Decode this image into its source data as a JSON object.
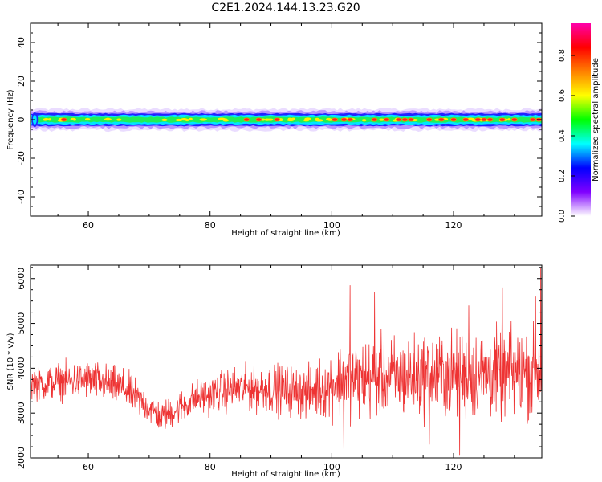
{
  "title": "C2E1.2024.144.13.23.G20",
  "chart_data": [
    {
      "type": "heatmap",
      "name": "spectrogram",
      "xlabel": "Height of straight line (km)",
      "ylabel": "Frequency (Hz)",
      "xlim": [
        50.5,
        134.5
      ],
      "ylim": [
        -50,
        50
      ],
      "xticks": [
        60,
        80,
        100,
        120
      ],
      "yticks": [
        40,
        20,
        0,
        -20,
        -40
      ],
      "ridge_frequency": 0,
      "band_halfwidth": 4,
      "colorbar": {
        "label": "Normalized spectral amplitude",
        "range": [
          0,
          1
        ],
        "ticks": [
          "0.0",
          "0.2",
          "0.4",
          "0.6",
          "0.8"
        ],
        "colors": [
          "#ffffff",
          "#8000ff",
          "#0000ff",
          "#00ffff",
          "#00ff00",
          "#ffff00",
          "#ff8000",
          "#ff0000",
          "#ff00aa"
        ]
      },
      "peak_heights": [
        56,
        86,
        88,
        91,
        100.5,
        102,
        103,
        107,
        109,
        111,
        112,
        113,
        116,
        118,
        120,
        122,
        124,
        125,
        126,
        128,
        130,
        133,
        134
      ]
    },
    {
      "type": "line",
      "name": "snr",
      "xlabel": "Height of straight line (km)",
      "ylabel": "SNR (10 * v/v)",
      "xlim": [
        50.5,
        134.5
      ],
      "ylim": [
        2000,
        6300
      ],
      "xticks": [
        60,
        80,
        100,
        120
      ],
      "yticks": [
        2000,
        3000,
        4000,
        5000,
        6000
      ],
      "line_color": "#ee3333",
      "trend": [
        {
          "x": 50.5,
          "mean": 3650,
          "amp": 350
        },
        {
          "x": 60,
          "mean": 3750,
          "amp": 380
        },
        {
          "x": 66,
          "mean": 3550,
          "amp": 380
        },
        {
          "x": 72,
          "mean": 2900,
          "amp": 300
        },
        {
          "x": 78,
          "mean": 3350,
          "amp": 350
        },
        {
          "x": 84,
          "mean": 3550,
          "amp": 420
        },
        {
          "x": 90,
          "mean": 3550,
          "amp": 480
        },
        {
          "x": 96,
          "mean": 3450,
          "amp": 500
        },
        {
          "x": 102,
          "mean": 3750,
          "amp": 750
        },
        {
          "x": 110,
          "mean": 3800,
          "amp": 800
        },
        {
          "x": 120,
          "mean": 3850,
          "amp": 850
        },
        {
          "x": 134.5,
          "mean": 3900,
          "amp": 900
        }
      ],
      "spikes": [
        {
          "x": 103,
          "y": 5850
        },
        {
          "x": 107,
          "y": 5700
        },
        {
          "x": 122.5,
          "y": 5400
        },
        {
          "x": 128,
          "y": 5800
        },
        {
          "x": 133.5,
          "y": 5600
        },
        {
          "x": 134.3,
          "y": 6250
        },
        {
          "x": 121,
          "y": 2050
        },
        {
          "x": 116,
          "y": 2300
        },
        {
          "x": 102,
          "y": 2200
        }
      ]
    }
  ]
}
